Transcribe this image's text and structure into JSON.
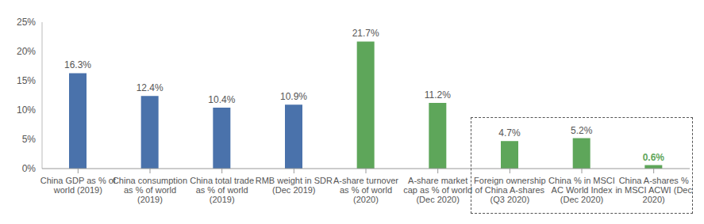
{
  "chart_data": {
    "type": "bar",
    "categories": [
      "China GDP as % of world (2019)",
      "China consumption as % of world (2019)",
      "China total trade as % of world (2019)",
      "RMB weight in SDR (Dec 2019)",
      "A-share turnover as % of world (2020)",
      "A-share market cap as % of world (Dec 2020)",
      "Foreign ownership of China A-shares (Q3 2020)",
      "China % in MSCI AC World Index (Dec 2020)",
      "China A-shares % in MSCI ACWI (Dec 2020)"
    ],
    "values": [
      16.3,
      12.4,
      10.4,
      10.9,
      21.7,
      11.2,
      4.7,
      5.2,
      0.6
    ],
    "value_labels": [
      "16.3%",
      "12.4%",
      "10.4%",
      "10.9%",
      "21.7%",
      "11.2%",
      "4.7%",
      "5.2%",
      "0.6%"
    ],
    "colors": [
      "#4a72ab",
      "#4a72ab",
      "#4a72ab",
      "#4a72ab",
      "#5ea65a",
      "#5ea65a",
      "#5ea65a",
      "#5ea65a",
      "#5ea65a"
    ],
    "ylim": [
      0,
      25
    ],
    "yticks": [
      {
        "value": 0,
        "label": "0%"
      },
      {
        "value": 5,
        "label": "5%"
      },
      {
        "value": 10,
        "label": "10%"
      },
      {
        "value": 15,
        "label": "15%"
      },
      {
        "value": 20,
        "label": "20%"
      },
      {
        "value": 25,
        "label": "25%"
      }
    ],
    "data_labels": true
  }
}
